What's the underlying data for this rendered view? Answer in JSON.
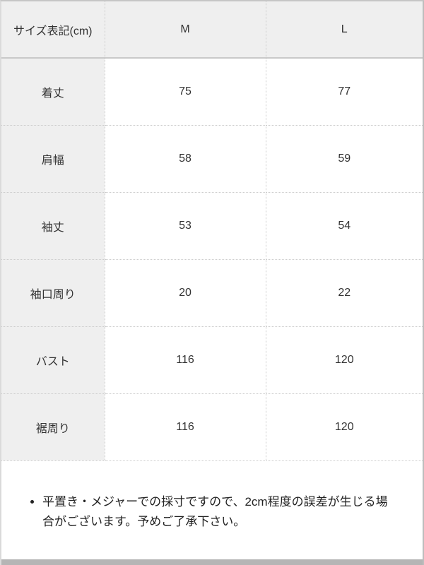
{
  "chart_data": {
    "type": "table",
    "title": "サイズ表記(cm)",
    "columns": [
      "サイズ表記(cm)",
      "M",
      "L"
    ],
    "rows": [
      [
        "着丈",
        75,
        77
      ],
      [
        "肩幅",
        58,
        59
      ],
      [
        "袖丈",
        53,
        54
      ],
      [
        "袖口周り",
        20,
        22
      ],
      [
        "バスト",
        116,
        120
      ],
      [
        "裾周り",
        116,
        120
      ]
    ],
    "notes": [
      "平置き・メジャーでの採寸ですので、2cm程度の誤差が生じる場合がございます。予めご了承下さい。"
    ],
    "layout": {
      "header_background": "#efefef",
      "label_column_background": "#efefef",
      "cell_background": "#ffffff",
      "grid": "dotted",
      "grid_color": "#cccccc",
      "outer_border_color": "#c6c6c6",
      "scrollbar_color": "#b5b5b5",
      "text_color": "#333333"
    }
  }
}
